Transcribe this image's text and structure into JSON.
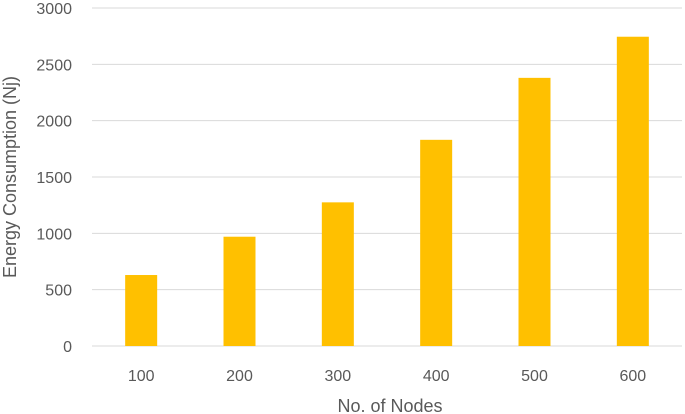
{
  "chart_data": {
    "type": "bar",
    "title": "",
    "xlabel": "No. of Nodes",
    "ylabel": "Energy Consumption (Nj)",
    "categories": [
      "100",
      "200",
      "300",
      "400",
      "500",
      "600"
    ],
    "values": [
      630,
      970,
      1275,
      1830,
      2380,
      2745
    ],
    "ylim": [
      0,
      3000
    ],
    "yticks": [
      "0",
      "500",
      "1000",
      "1500",
      "2000",
      "2500",
      "3000"
    ],
    "grid": true,
    "legend": "none",
    "colors": {
      "bar": "#FFC000",
      "gridline": "#D9D9D9",
      "axis_text": "#595959"
    }
  }
}
